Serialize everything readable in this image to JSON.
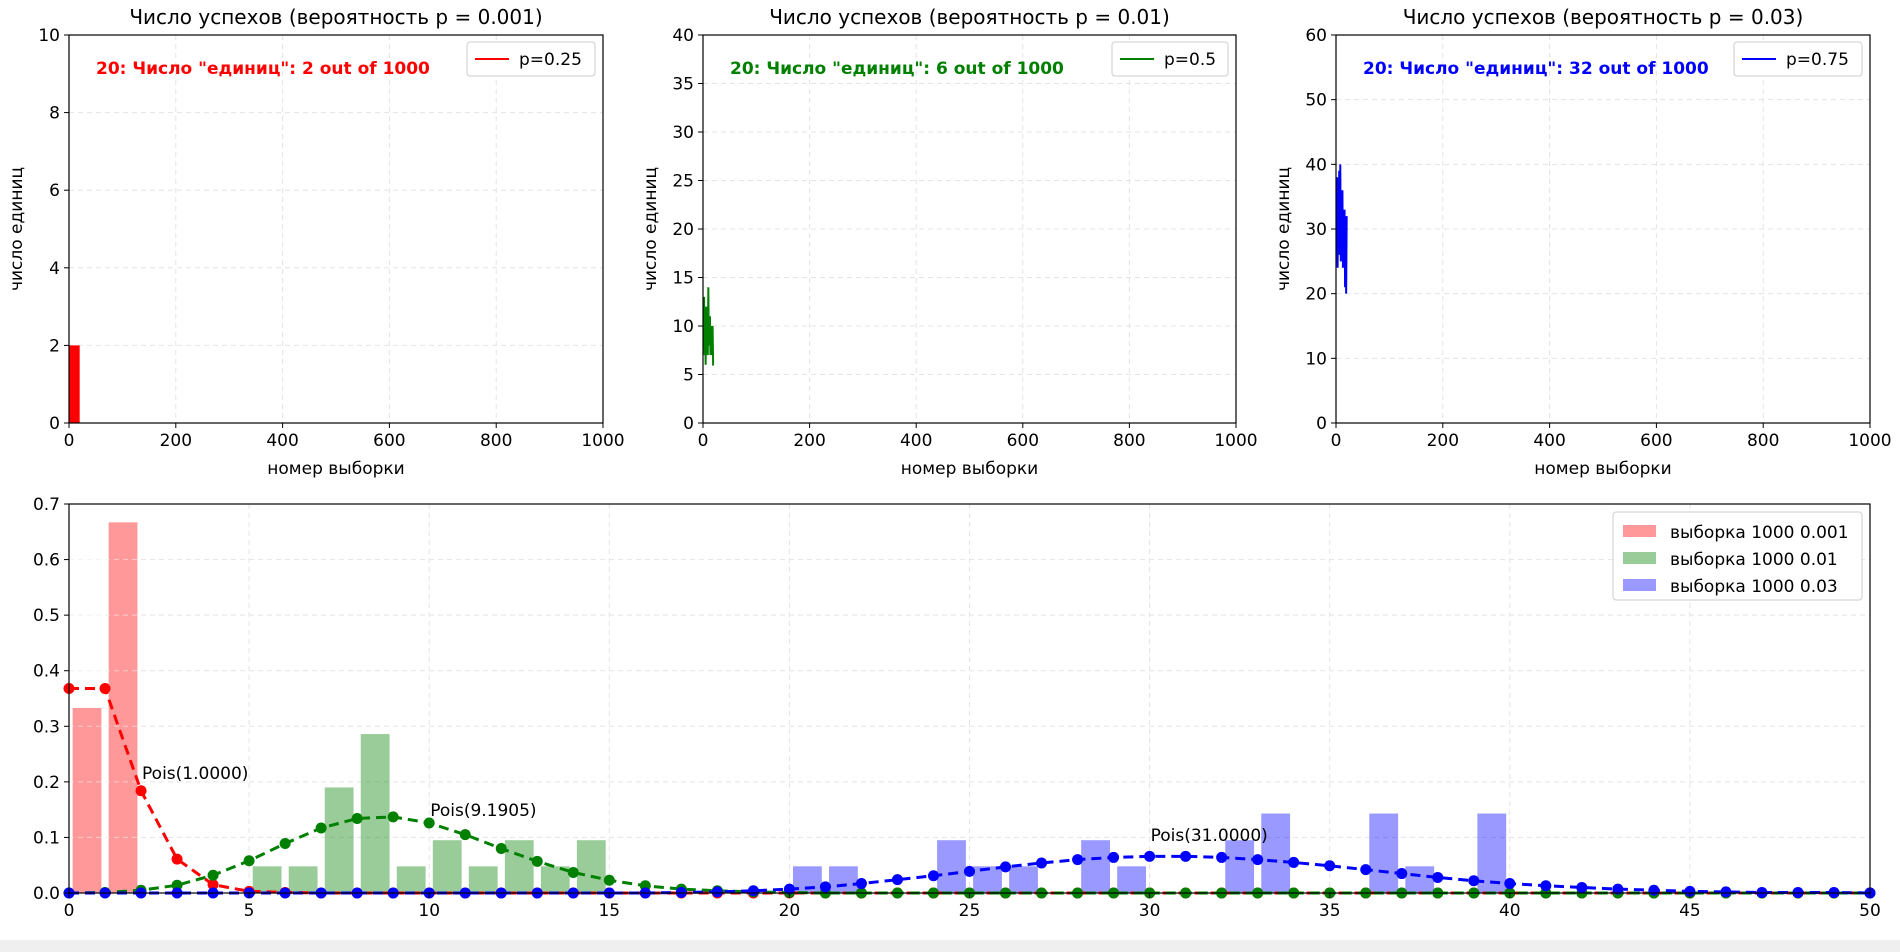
{
  "chart_data": [
    {
      "type": "line",
      "title": "Число успехов (вероятность p = 0.001)",
      "xlabel": "номер выборки",
      "ylabel": "число единиц",
      "xlim": [
        0,
        1000
      ],
      "ylim": [
        0,
        10
      ],
      "xticks": [
        "0",
        "200",
        "400",
        "600",
        "800",
        "1000"
      ],
      "yticks": [
        "0",
        "2",
        "4",
        "6",
        "8",
        "10"
      ],
      "grid": true,
      "legend": {
        "placement": "top-right",
        "label": "p=0.25"
      },
      "color": "#ff0000",
      "annotation": "20: Число \"единиц\": 2 out of 1000",
      "series": [
        {
          "name": "p=0.25",
          "x": [
            1,
            2,
            3,
            4,
            5,
            6,
            7,
            8,
            9,
            10,
            11,
            12,
            13,
            14,
            15,
            16,
            17,
            18,
            19,
            20
          ],
          "values": [
            2,
            1,
            2,
            1,
            2,
            2,
            1,
            2,
            2,
            1,
            2,
            2,
            1,
            2,
            2,
            1,
            1,
            2,
            2,
            2
          ]
        }
      ]
    },
    {
      "type": "line",
      "title": "Число успехов (вероятность p = 0.01)",
      "xlabel": "номер выборки",
      "ylabel": "число единиц",
      "xlim": [
        0,
        1000
      ],
      "ylim": [
        0,
        40
      ],
      "xticks": [
        "0",
        "200",
        "400",
        "600",
        "800",
        "1000"
      ],
      "yticks": [
        "0",
        "5",
        "10",
        "15",
        "20",
        "25",
        "30",
        "35",
        "40"
      ],
      "grid": true,
      "legend": {
        "placement": "top-right",
        "label": "p=0.5"
      },
      "color": "#008000",
      "annotation": "20: Число \"единиц\": 6 out of 1000",
      "series": [
        {
          "name": "p=0.5",
          "x": [
            1,
            2,
            3,
            4,
            5,
            6,
            7,
            8,
            9,
            10,
            11,
            12,
            13,
            14,
            15,
            16,
            17,
            18,
            19,
            20
          ],
          "values": [
            8,
            13,
            7,
            11,
            6,
            12,
            8,
            10,
            7,
            14,
            8,
            9,
            11,
            7,
            8,
            10,
            7,
            10,
            6,
            6
          ]
        }
      ]
    },
    {
      "type": "line",
      "title": "Число успехов (вероятность p = 0.03)",
      "xlabel": "номер выборки",
      "ylabel": "число единиц",
      "xlim": [
        0,
        1000
      ],
      "ylim": [
        0,
        60
      ],
      "xticks": [
        "0",
        "200",
        "400",
        "600",
        "800",
        "1000"
      ],
      "yticks": [
        "0",
        "10",
        "20",
        "30",
        "40",
        "50",
        "60"
      ],
      "grid": true,
      "legend": {
        "placement": "top-right",
        "label": "p=0.75"
      },
      "color": "#0000ff",
      "annotation": "20: Число \"единиц\": 32 out of 1000",
      "series": [
        {
          "name": "p=0.75",
          "x": [
            1,
            2,
            3,
            4,
            5,
            6,
            7,
            8,
            9,
            10,
            11,
            12,
            13,
            14,
            15,
            16,
            17,
            18,
            19,
            20
          ],
          "values": [
            30,
            38,
            24,
            36,
            28,
            39,
            26,
            40,
            25,
            34,
            29,
            36,
            24,
            31,
            28,
            33,
            21,
            32,
            20,
            32
          ]
        }
      ]
    },
    {
      "type": "bar",
      "title": "",
      "xlabel": "",
      "ylabel": "",
      "xlim": [
        0,
        50
      ],
      "ylim": [
        0,
        0.7
      ],
      "xticks": [
        "0",
        "5",
        "10",
        "15",
        "20",
        "25",
        "30",
        "35",
        "40",
        "45",
        "50"
      ],
      "yticks": [
        "0.0",
        "0.1",
        "0.2",
        "0.3",
        "0.4",
        "0.5",
        "0.6",
        "0.7"
      ],
      "grid": true,
      "legend": {
        "placement": "top-right",
        "entries": [
          "выборка 1000 0.001",
          "выборка 1000 0.01",
          "выборка 1000 0.03"
        ]
      },
      "bars": [
        {
          "name": "выборка 1000 0.001",
          "color": "#ff0000",
          "x": [
            0.5,
            1.5
          ],
          "values": [
            0.333,
            0.667
          ]
        },
        {
          "name": "выборка 1000 0.01",
          "color": "#008000",
          "x": [
            5.5,
            6.5,
            7.5,
            8.5,
            9.5,
            10.5,
            11.5,
            12.5,
            13.5,
            14.5
          ],
          "values": [
            0.048,
            0.048,
            0.19,
            0.286,
            0.048,
            0.095,
            0.048,
            0.095,
            0.048,
            0.095
          ]
        },
        {
          "name": "выборка 1000 0.03",
          "color": "#0000ff",
          "x": [
            20.5,
            21.5,
            24.5,
            25.5,
            26.5,
            28.5,
            29.5,
            32.5,
            33.5,
            36.5,
            37.5,
            39.5
          ],
          "values": [
            0.048,
            0.048,
            0.095,
            0.048,
            0.048,
            0.095,
            0.048,
            0.095,
            0.143,
            0.143,
            0.048,
            0.143
          ]
        }
      ],
      "curves": [
        {
          "name": "Pois(1.0000)",
          "color": "#ff0000",
          "label_at": [
            2,
            0.2
          ],
          "values": [
            0.368,
            0.368,
            0.184,
            0.061,
            0.015,
            0.003,
            0.001,
            0,
            0,
            0,
            0,
            0,
            0,
            0,
            0,
            0,
            0,
            0,
            0,
            0,
            0,
            0,
            0,
            0,
            0,
            0,
            0,
            0,
            0,
            0,
            0,
            0,
            0,
            0,
            0,
            0,
            0,
            0,
            0,
            0,
            0,
            0,
            0,
            0,
            0,
            0,
            0,
            0,
            0,
            0,
            0
          ]
        },
        {
          "name": "Pois(9.1905)",
          "color": "#008000",
          "label_at": [
            10,
            0.133
          ],
          "values": [
            0,
            0.001,
            0.005,
            0.014,
            0.032,
            0.058,
            0.089,
            0.117,
            0.134,
            0.137,
            0.126,
            0.105,
            0.08,
            0.057,
            0.037,
            0.023,
            0.013,
            0.007,
            0.004,
            0.002,
            0.001,
            0,
            0,
            0,
            0,
            0,
            0,
            0,
            0,
            0,
            0,
            0,
            0,
            0,
            0,
            0,
            0,
            0,
            0,
            0,
            0,
            0,
            0,
            0,
            0,
            0,
            0,
            0,
            0,
            0,
            0
          ]
        },
        {
          "name": "Pois(31.0000)",
          "color": "#0000ff",
          "label_at": [
            30,
            0.088
          ],
          "values": [
            0,
            0,
            0,
            0,
            0,
            0,
            0,
            0,
            0,
            0,
            0,
            0,
            0,
            0,
            0,
            0,
            0,
            0.001,
            0.002,
            0.004,
            0.007,
            0.011,
            0.017,
            0.024,
            0.031,
            0.039,
            0.047,
            0.054,
            0.06,
            0.064,
            0.066,
            0.066,
            0.064,
            0.06,
            0.055,
            0.049,
            0.042,
            0.035,
            0.028,
            0.022,
            0.017,
            0.013,
            0.01,
            0.007,
            0.005,
            0.003,
            0.002,
            0.001,
            0.001,
            0.001,
            0
          ]
        }
      ]
    }
  ]
}
